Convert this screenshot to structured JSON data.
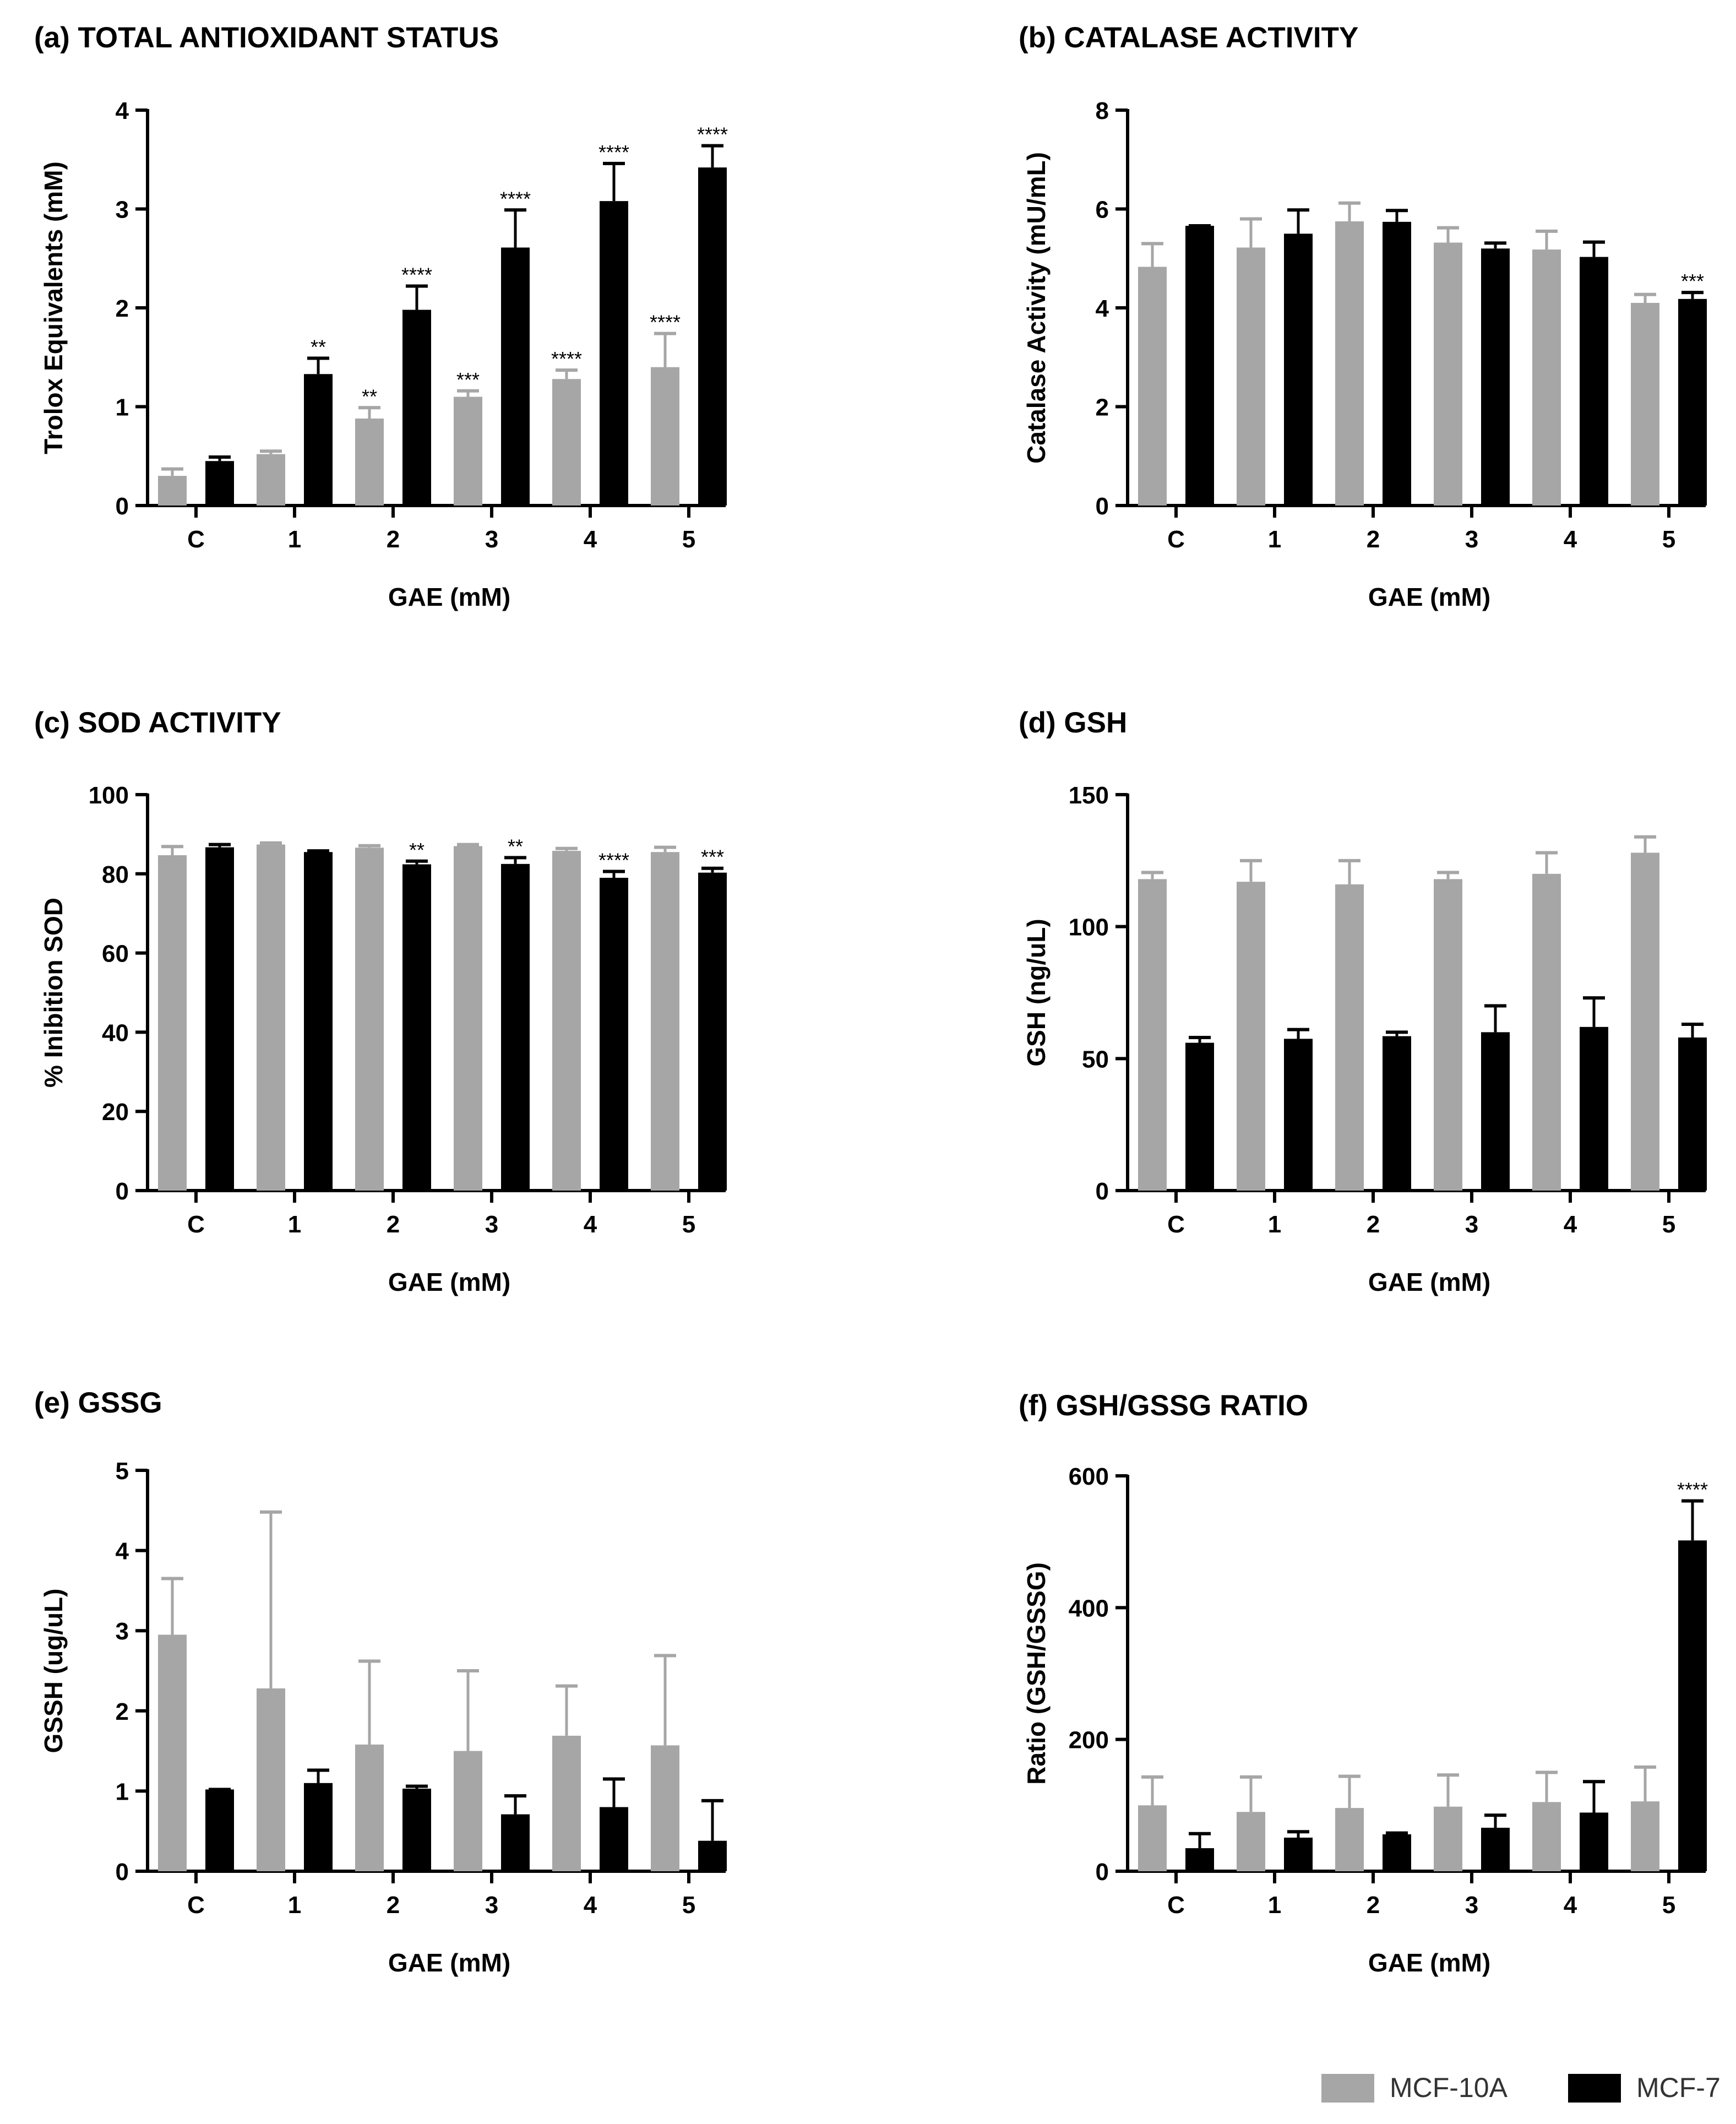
{
  "colors": {
    "mcf10a": "#a6a6a7",
    "mcf7": "#000000",
    "axis": "#000000",
    "text": "#000000"
  },
  "legend": {
    "items": [
      {
        "label": "MCF-10A",
        "series": "mcf10a"
      },
      {
        "label": "MCF-7",
        "series": "mcf7"
      }
    ]
  },
  "chart_data": [
    {
      "type": "bar",
      "panel": "a",
      "title": "(a) TOTAL ANTIOXIDANT STATUS",
      "xlabel": "GAE (mM)",
      "ylabel": "Trolox Equivalents (mM)",
      "categories": [
        "C",
        "1",
        "2",
        "3",
        "4",
        "5"
      ],
      "ylim": [
        0,
        4
      ],
      "yticks": [
        0,
        1,
        2,
        3,
        4
      ],
      "ytick_labels": [
        "0",
        "1",
        "2",
        "3",
        "4"
      ],
      "series": [
        {
          "name": "MCF-10A",
          "key": "mcf10a",
          "values": [
            0.3,
            0.52,
            0.88,
            1.1,
            1.28,
            1.4
          ],
          "errors": [
            0.07,
            0.03,
            0.11,
            0.06,
            0.09,
            0.34
          ],
          "annotations": [
            "",
            "",
            "**",
            "***",
            "****",
            "****"
          ]
        },
        {
          "name": "MCF-7",
          "key": "mcf7",
          "values": [
            0.45,
            1.33,
            1.98,
            2.61,
            3.08,
            3.42
          ],
          "errors": [
            0.04,
            0.16,
            0.24,
            0.38,
            0.38,
            0.22
          ],
          "annotations": [
            "",
            "**",
            "****",
            "****",
            "****",
            "****"
          ]
        }
      ]
    },
    {
      "type": "bar",
      "panel": "b",
      "title": "(b) CATALASE ACTIVITY",
      "xlabel": "GAE (mM)",
      "ylabel": "Catalase Activity (mU/mL)",
      "categories": [
        "C",
        "1",
        "2",
        "3",
        "4",
        "5"
      ],
      "ylim": [
        0,
        8
      ],
      "yticks": [
        0,
        2,
        4,
        6,
        8
      ],
      "ytick_labels": [
        "0",
        "2",
        "4",
        "6",
        "8"
      ],
      "series": [
        {
          "name": "MCF-10A",
          "key": "mcf10a",
          "values": [
            4.83,
            5.22,
            5.75,
            5.32,
            5.18,
            4.1
          ],
          "errors": [
            0.47,
            0.58,
            0.37,
            0.3,
            0.37,
            0.17
          ],
          "annotations": [
            "",
            "",
            "",
            "",
            "",
            ""
          ]
        },
        {
          "name": "MCF-7",
          "key": "mcf7",
          "values": [
            5.66,
            5.5,
            5.74,
            5.2,
            5.03,
            4.18
          ],
          "errors": [
            0.0,
            0.48,
            0.23,
            0.11,
            0.3,
            0.13
          ],
          "annotations": [
            "",
            "",
            "",
            "",
            "",
            "***"
          ]
        }
      ]
    },
    {
      "type": "bar",
      "panel": "c",
      "title": "(c) SOD ACTIVITY",
      "xlabel": "GAE (mM)",
      "ylabel": "% Inibition SOD",
      "categories": [
        "C",
        "1",
        "2",
        "3",
        "4",
        "5"
      ],
      "ylim": [
        0,
        100
      ],
      "yticks": [
        0,
        20,
        40,
        60,
        80,
        100
      ],
      "ytick_labels": [
        "0",
        "20",
        "40",
        "60",
        "80",
        "100"
      ],
      "series": [
        {
          "name": "MCF-10A",
          "key": "mcf10a",
          "values": [
            84.7,
            87.4,
            86.6,
            87.0,
            85.8,
            85.5
          ],
          "errors": [
            2.2,
            0.4,
            0.5,
            0.4,
            0.6,
            1.2
          ],
          "annotations": [
            "",
            "",
            "",
            "",
            "",
            ""
          ]
        },
        {
          "name": "MCF-7",
          "key": "mcf7",
          "values": [
            86.7,
            85.5,
            82.4,
            82.5,
            79.0,
            80.3
          ],
          "errors": [
            0.7,
            0.3,
            0.8,
            1.6,
            1.6,
            1.1
          ],
          "annotations": [
            "",
            "",
            "**",
            "**",
            "****",
            "***"
          ]
        }
      ]
    },
    {
      "type": "bar",
      "panel": "d",
      "title": "(d) GSH",
      "xlabel": "GAE (mM)",
      "ylabel": "GSH (ng/uL)",
      "categories": [
        "C",
        "1",
        "2",
        "3",
        "4",
        "5"
      ],
      "ylim": [
        0,
        150
      ],
      "yticks": [
        0,
        50,
        100,
        150
      ],
      "ytick_labels": [
        "0",
        "50",
        "100",
        "150"
      ],
      "series": [
        {
          "name": "MCF-10A",
          "key": "mcf10a",
          "values": [
            118,
            117,
            116,
            118,
            120,
            128
          ],
          "errors": [
            2.5,
            8,
            9,
            2.5,
            8,
            6
          ],
          "annotations": [
            "",
            "",
            "",
            "",
            "",
            ""
          ]
        },
        {
          "name": "MCF-7",
          "key": "mcf7",
          "values": [
            56,
            57.5,
            58.5,
            60,
            62,
            58
          ],
          "errors": [
            2,
            3.5,
            1.5,
            10,
            11,
            5
          ],
          "annotations": [
            "",
            "",
            "",
            "",
            "",
            ""
          ]
        }
      ]
    },
    {
      "type": "bar",
      "panel": "e",
      "title": "(e) GSSG",
      "xlabel": "GAE (mM)",
      "ylabel": "GSSH (ug/uL)",
      "categories": [
        "C",
        "1",
        "2",
        "3",
        "4",
        "5"
      ],
      "ylim": [
        0,
        5
      ],
      "yticks": [
        0,
        1,
        2,
        3,
        4,
        5
      ],
      "ytick_labels": [
        "0",
        "1",
        "2",
        "3",
        "4",
        "5"
      ],
      "series": [
        {
          "name": "MCF-10A",
          "key": "mcf10a",
          "values": [
            2.95,
            2.28,
            1.58,
            1.5,
            1.69,
            1.57
          ],
          "errors": [
            0.7,
            2.2,
            1.04,
            1.0,
            0.62,
            1.12
          ],
          "annotations": [
            "",
            "",
            "",
            "",
            "",
            ""
          ]
        },
        {
          "name": "MCF-7",
          "key": "mcf7",
          "values": [
            1.02,
            1.1,
            1.03,
            0.71,
            0.8,
            0.38
          ],
          "errors": [
            0.0,
            0.16,
            0.03,
            0.23,
            0.35,
            0.5
          ],
          "annotations": [
            "",
            "",
            "",
            "",
            "",
            ""
          ]
        }
      ]
    },
    {
      "type": "bar",
      "panel": "f",
      "title": "(f) GSH/GSSG RATIO",
      "xlabel": "GAE (mM)",
      "ylabel": "Ratio (GSH/GSSG)",
      "categories": [
        "C",
        "1",
        "2",
        "3",
        "4",
        "5"
      ],
      "ylim": [
        0,
        600
      ],
      "yticks": [
        0,
        200,
        400,
        600
      ],
      "ytick_labels": [
        "0",
        "200",
        "400",
        "600"
      ],
      "series": [
        {
          "name": "MCF-10A",
          "key": "mcf10a",
          "values": [
            100,
            90,
            96,
            98,
            105,
            106
          ],
          "errors": [
            43,
            53,
            48,
            48,
            45,
            52
          ],
          "annotations": [
            "",
            "",
            "",
            "",
            "",
            ""
          ]
        },
        {
          "name": "MCF-7",
          "key": "mcf7",
          "values": [
            35,
            51,
            56,
            66,
            89,
            502
          ],
          "errors": [
            22,
            9,
            2,
            19,
            47,
            60
          ],
          "annotations": [
            "",
            "",
            "",
            "",
            "",
            "****"
          ]
        }
      ]
    }
  ]
}
